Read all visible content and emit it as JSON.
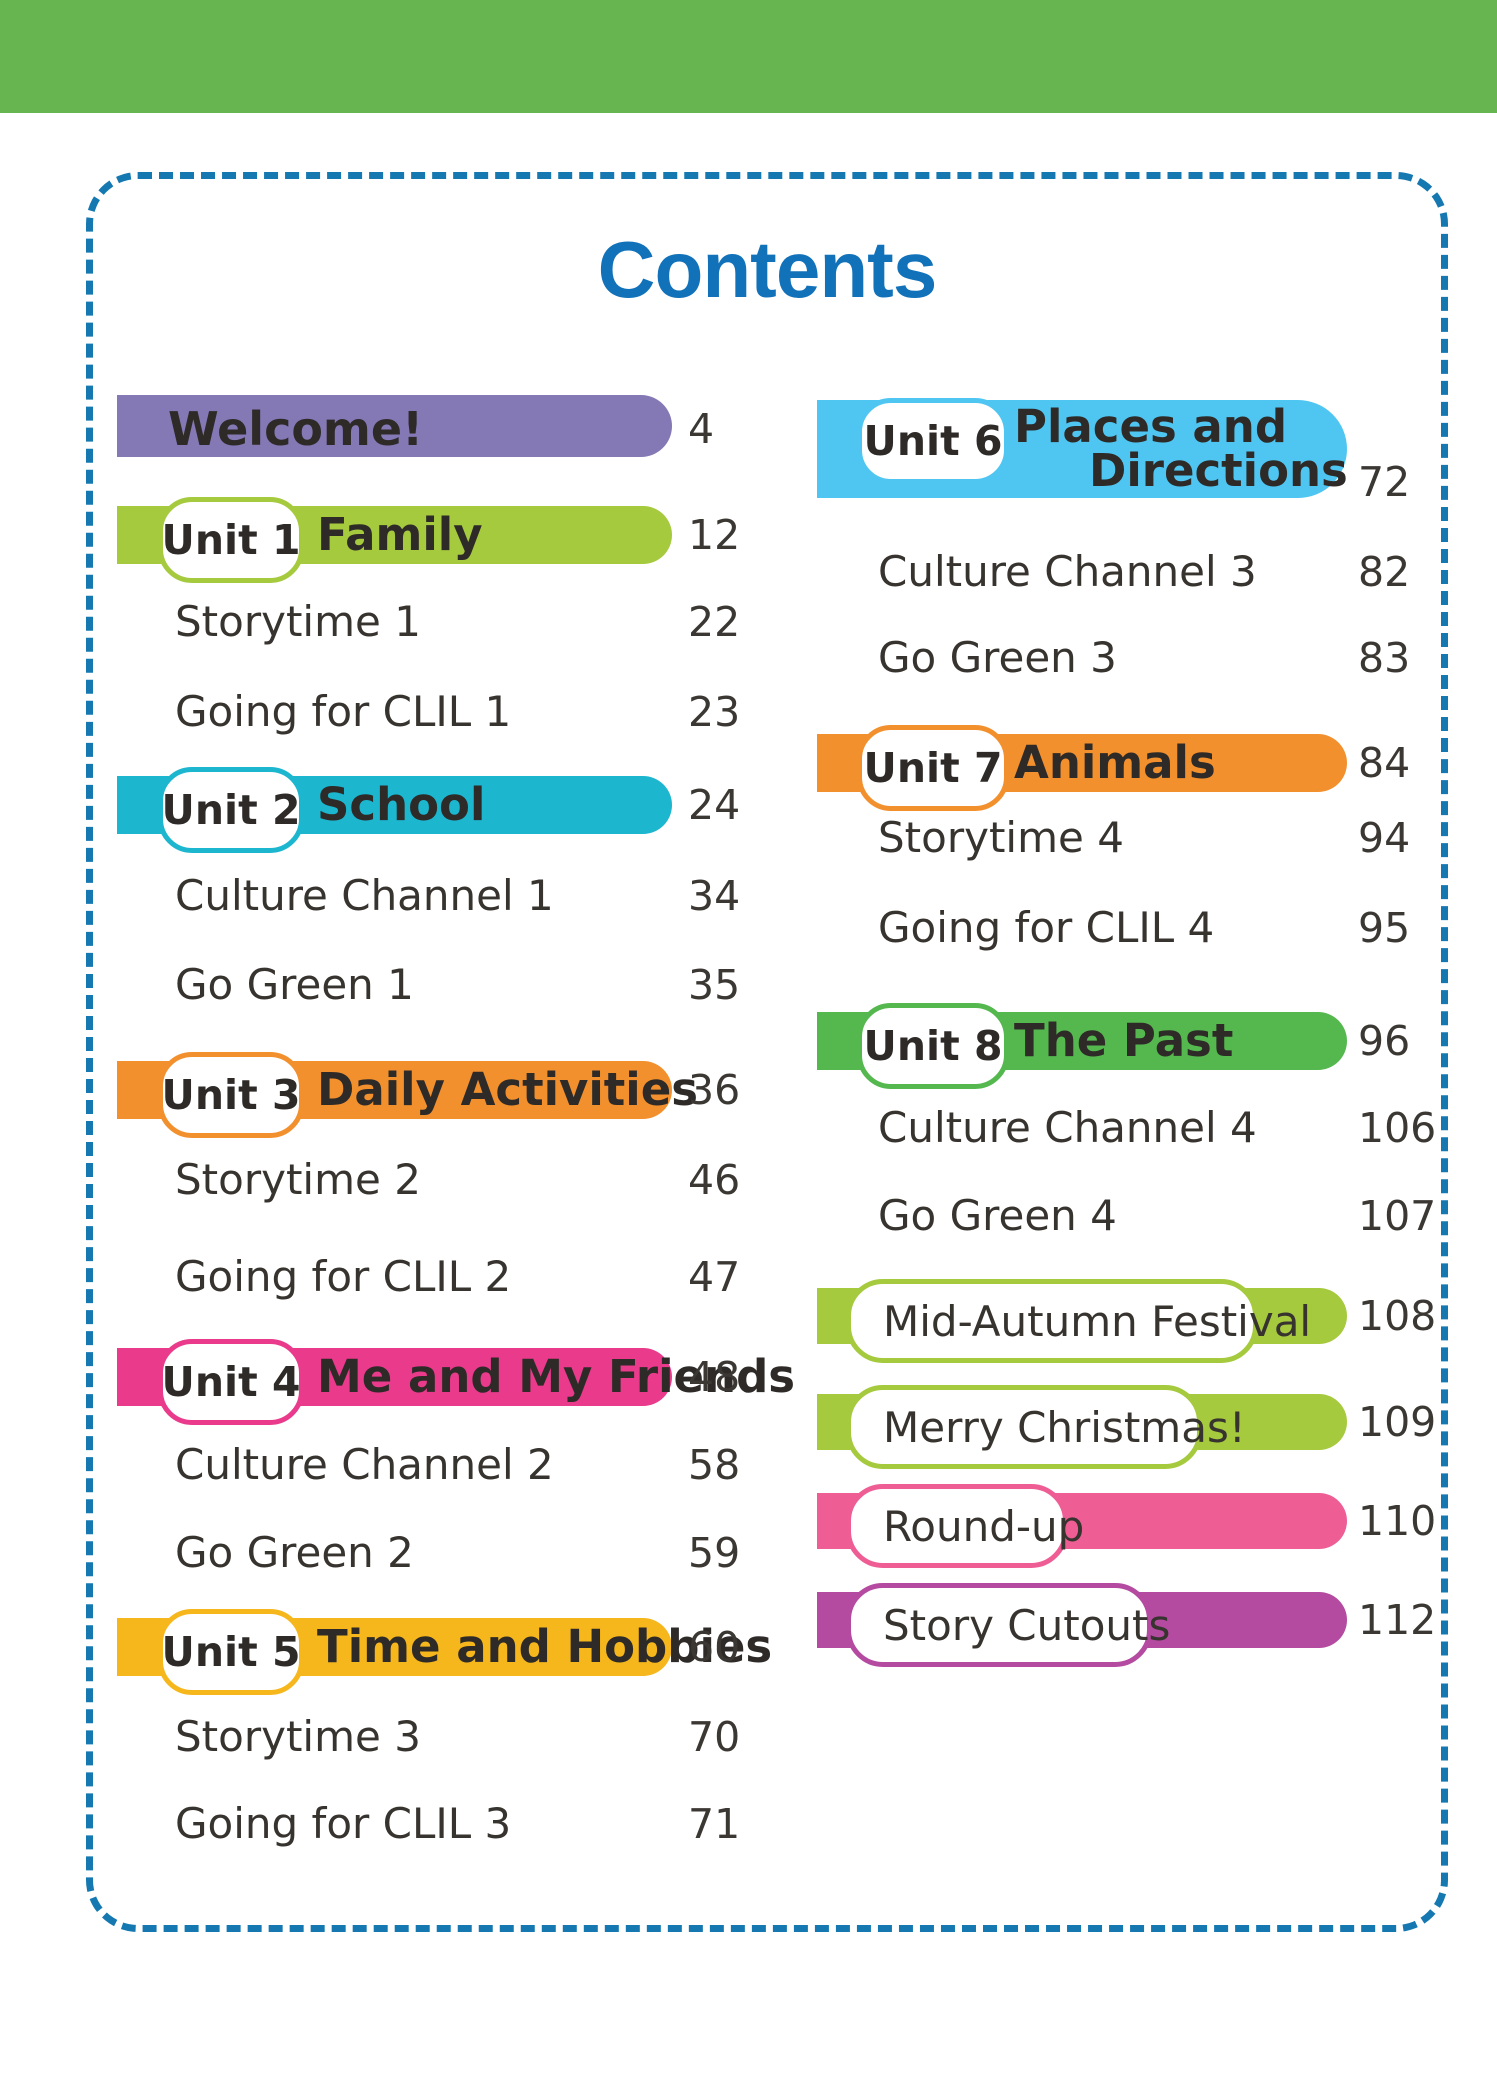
{
  "page_title": "Contents",
  "title_color": "#1272b9",
  "header": {
    "color": "#67b551"
  },
  "border": {
    "color": "#1578b0"
  },
  "toc": {
    "left": [
      {
        "type": "plain-bar",
        "label": "Welcome!",
        "page": "4",
        "color": "#8478b5"
      },
      {
        "type": "unit-bar",
        "unit": "Unit 1",
        "title": "Family",
        "page": "12",
        "color": "#a5ca3e"
      },
      {
        "type": "text",
        "label": "Storytime 1",
        "page": "22"
      },
      {
        "type": "text",
        "label": "Going for CLIL 1",
        "page": "23"
      },
      {
        "type": "unit-bar",
        "unit": "Unit 2",
        "title": "School",
        "page": "24",
        "color": "#1cb6cf"
      },
      {
        "type": "text",
        "label": "Culture Channel 1",
        "page": "34"
      },
      {
        "type": "text",
        "label": "Go Green 1",
        "page": "35"
      },
      {
        "type": "unit-bar",
        "unit": "Unit 3",
        "title": "Daily Activities",
        "page": "36",
        "color": "#f2902e"
      },
      {
        "type": "text",
        "label": "Storytime 2",
        "page": "46"
      },
      {
        "type": "text",
        "label": "Going for CLIL 2",
        "page": "47"
      },
      {
        "type": "unit-bar",
        "unit": "Unit 4",
        "title": "Me and My Friends",
        "page": "48",
        "color": "#e93a8c"
      },
      {
        "type": "text",
        "label": "Culture Channel 2",
        "page": "58"
      },
      {
        "type": "text",
        "label": "Go Green 2",
        "page": "59"
      },
      {
        "type": "unit-bar",
        "unit": "Unit 5",
        "title": "Time and Hobbies",
        "page": "60",
        "color": "#f6b71d"
      },
      {
        "type": "text",
        "label": "Storytime 3",
        "page": "70"
      },
      {
        "type": "text",
        "label": "Going for CLIL 3",
        "page": "71"
      }
    ],
    "right": [
      {
        "type": "unit-bar",
        "unit": "Unit 6",
        "title_lines": [
          "Places and",
          "Directions"
        ],
        "page": "72",
        "color": "#4fc6f2"
      },
      {
        "type": "text",
        "label": "Culture Channel 3",
        "page": "82"
      },
      {
        "type": "text",
        "label": "Go Green 3",
        "page": "83"
      },
      {
        "type": "unit-bar",
        "unit": "Unit 7",
        "title": "Animals",
        "page": "84",
        "color": "#f2902e"
      },
      {
        "type": "text",
        "label": "Storytime 4",
        "page": "94"
      },
      {
        "type": "text",
        "label": "Going for CLIL 4",
        "page": "95"
      },
      {
        "type": "unit-bar",
        "unit": "Unit 8",
        "title": "The Past",
        "page": "96",
        "color": "#55b84f"
      },
      {
        "type": "text",
        "label": "Culture Channel 4",
        "page": "106"
      },
      {
        "type": "text",
        "label": "Go Green 4",
        "page": "107"
      },
      {
        "type": "pill-bar",
        "label": "Mid-Autumn Festival",
        "page": "108",
        "color": "#a5ca3e"
      },
      {
        "type": "pill-bar",
        "label": "Merry Christmas!",
        "page": "109",
        "color": "#a5ca3e"
      },
      {
        "type": "pill-bar",
        "label": "Round-up",
        "page": "110",
        "color": "#ee5e95"
      },
      {
        "type": "pill-bar",
        "label": "Story Cutouts",
        "page": "112",
        "color": "#b44ba0"
      }
    ]
  }
}
